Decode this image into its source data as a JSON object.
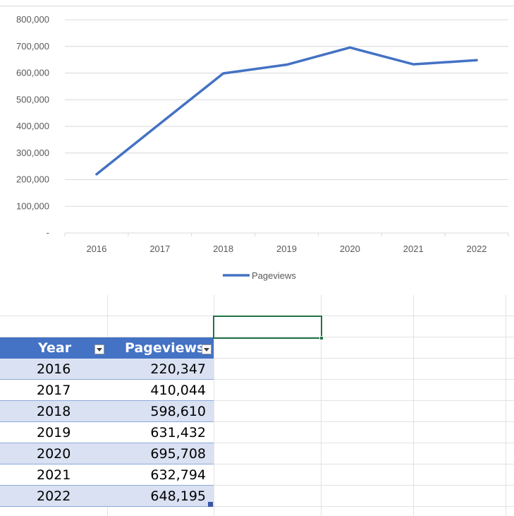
{
  "chart_data": {
    "type": "line",
    "categories": [
      "2016",
      "2017",
      "2018",
      "2019",
      "2020",
      "2021",
      "2022"
    ],
    "series": [
      {
        "name": "Pageviews",
        "values": [
          220347,
          410044,
          598610,
          631432,
          695708,
          632794,
          648195
        ],
        "color": "#4472c4"
      }
    ],
    "yticks": [
      "800,000",
      "700,000",
      "600,000",
      "500,000",
      "400,000",
      "300,000",
      "200,000",
      "100,000",
      "-"
    ],
    "ylim": [
      0,
      800000
    ],
    "grid": true,
    "legend": "bottom"
  },
  "table": {
    "headers": {
      "year": "Year",
      "pageviews": "Pageviews"
    },
    "rows": [
      {
        "year": "2016",
        "pageviews": "220,347"
      },
      {
        "year": "2017",
        "pageviews": "410,044"
      },
      {
        "year": "2018",
        "pageviews": "598,610"
      },
      {
        "year": "2019",
        "pageviews": "631,432"
      },
      {
        "year": "2020",
        "pageviews": "695,708"
      },
      {
        "year": "2021",
        "pageviews": "632,794"
      },
      {
        "year": "2022",
        "pageviews": "648,195"
      }
    ],
    "header_color": "#4472c4",
    "band_color": "#d9e1f2"
  },
  "grid_color": "#e2e2e2",
  "selection_color": "#217346"
}
